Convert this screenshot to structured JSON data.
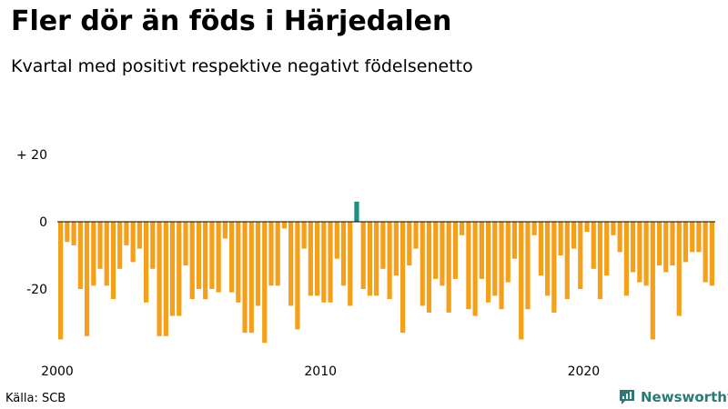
{
  "header": {
    "title": "Fler dör än föds i Härjedalen",
    "subtitle": "Kvartal med positivt respektive negativt födelsenetto"
  },
  "footer": {
    "source": "Källa: SCB",
    "brand": "Newsworthy",
    "brand_icon": "newsworthy-logo-icon"
  },
  "colors": {
    "negative": "#f5a01a",
    "positive": "#1a9083",
    "brand": "#2a7a77"
  },
  "chart_data": {
    "type": "bar",
    "title": "Fler dör än föds i Härjedalen",
    "subtitle": "Kvartal med positivt respektive negativt födelsenetto",
    "xlabel": "",
    "ylabel": "",
    "y_ticks": [
      {
        "value": 20,
        "label": "+ 20"
      },
      {
        "value": 0,
        "label": "0"
      },
      {
        "value": -20,
        "label": "-20"
      }
    ],
    "x_ticks": [
      {
        "value": 2000,
        "label": "2000"
      },
      {
        "value": 2010,
        "label": "2010"
      },
      {
        "value": 2020,
        "label": "2020"
      }
    ],
    "ylim": [
      -38,
      30
    ],
    "x_start": 2000,
    "periods_per_year": 4,
    "grid": false,
    "series": [
      {
        "values": [
          -35,
          -6,
          -7,
          -20,
          -34,
          -19,
          -14,
          -19,
          -23,
          -14,
          -7,
          -12,
          -8,
          -24,
          -14,
          -34,
          -34,
          -28,
          -28,
          -13,
          -23,
          -20,
          -23,
          -20,
          -21,
          -5,
          -21,
          -24,
          -33,
          -33,
          -25,
          -36,
          -19,
          -19,
          -2,
          -25,
          -32,
          -8,
          -22,
          -22,
          -24,
          -24,
          -11,
          -19,
          -25,
          6,
          -20,
          -22,
          -22,
          -14,
          -23,
          -16,
          -33,
          -13,
          -8,
          -25,
          -27,
          -17,
          -19,
          -27,
          -17,
          -4,
          -26,
          -28,
          -17,
          -24,
          -22,
          -26,
          -18,
          -11,
          -35,
          -26,
          -4,
          -16,
          -22,
          -27,
          -10,
          -23,
          -8,
          -20,
          -3,
          -14,
          -23,
          -16,
          -4,
          -9,
          -22,
          -15,
          -18,
          -19,
          -35,
          -13,
          -15,
          -13,
          -28,
          -12,
          -9,
          -9,
          -18,
          -19
        ]
      }
    ]
  }
}
